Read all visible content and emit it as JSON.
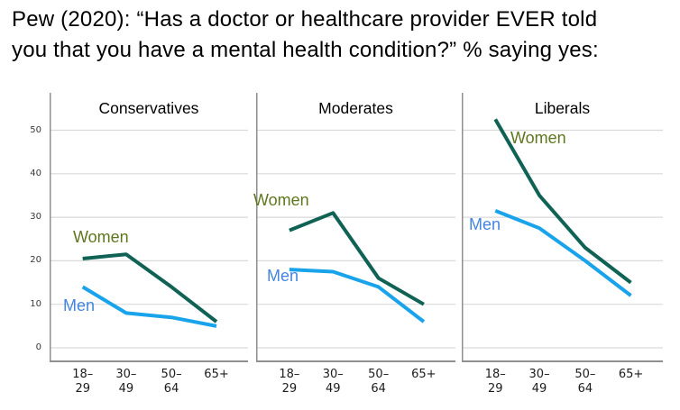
{
  "title_lines": [
    "Pew (2020): “Has a doctor or healthcare provider EVER told",
    "you that you have a mental health condition?” % saying yes:"
  ],
  "colors": {
    "women_line": "#0f6254",
    "men_line": "#18a3ea",
    "women_label": "#5e761e",
    "men_label": "#4485e0",
    "grid": "#d9d9d9",
    "axis": "#8f8f8f",
    "tick_text": "#1c1c1c"
  },
  "chart_data": {
    "type": "line",
    "title": "Pew (2020): “Has a doctor or healthcare provider EVER told you that you have a mental health condition?” % saying yes:",
    "categories": [
      "18–29",
      "30–49",
      "50–64",
      "65+"
    ],
    "x_tick_lines": [
      [
        "18–",
        "29"
      ],
      [
        "30–",
        "49"
      ],
      [
        "50–",
        "64"
      ],
      [
        "65+",
        ""
      ]
    ],
    "yticks": [
      0,
      10,
      20,
      30,
      40,
      50
    ],
    "ylim": [
      0,
      58
    ],
    "grid": true,
    "legend_position": "inline-labels",
    "panels": [
      {
        "title": "Conservatives",
        "series": [
          {
            "name": "Women",
            "values": [
              20.5,
              21.5,
              14,
              6
            ]
          },
          {
            "name": "Men",
            "values": [
              14,
              8,
              7,
              5
            ]
          }
        ]
      },
      {
        "title": "Moderates",
        "series": [
          {
            "name": "Women",
            "values": [
              27,
              31,
              16,
              10
            ]
          },
          {
            "name": "Men",
            "values": [
              18,
              17.5,
              14,
              6
            ]
          }
        ]
      },
      {
        "title": "Liberals",
        "series": [
          {
            "name": "Women",
            "values": [
              52.5,
              35,
              23,
              15
            ]
          },
          {
            "name": "Men",
            "values": [
              31.5,
              27.5,
              20,
              12
            ]
          }
        ]
      }
    ]
  }
}
